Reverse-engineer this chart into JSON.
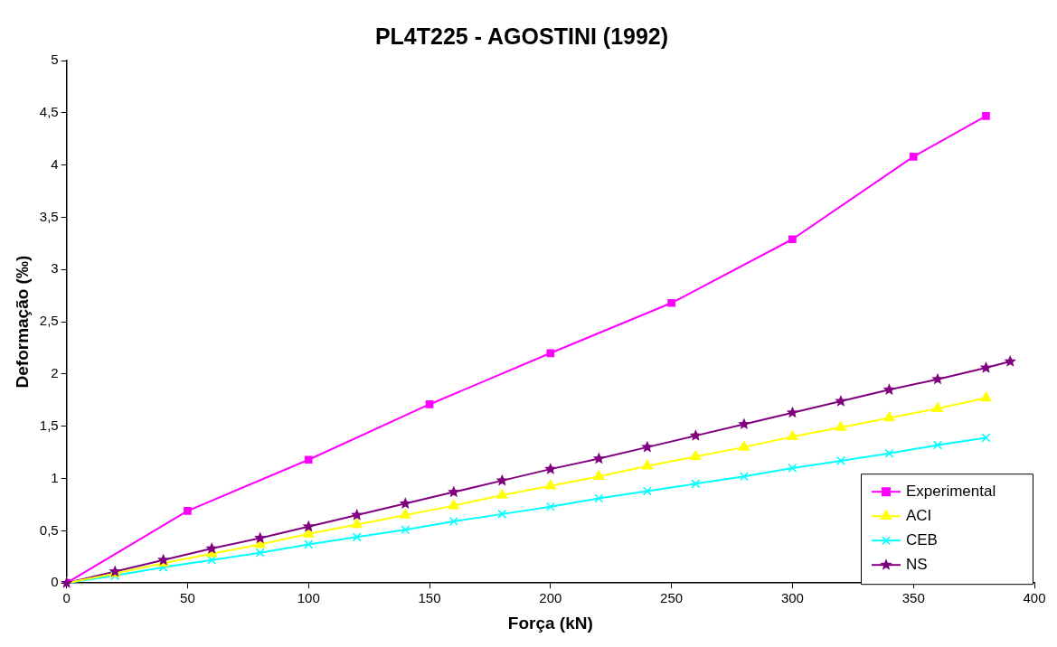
{
  "chart_data": {
    "type": "line",
    "title": "PL4T225 - AGOSTINI (1992)",
    "xlabel": "Força (kN)",
    "ylabel": "Deformação (‰)",
    "xlim": [
      0,
      400
    ],
    "xticks": [
      0,
      50,
      100,
      150,
      200,
      250,
      300,
      350,
      400
    ],
    "ylim": [
      0,
      5
    ],
    "yticks": [
      0,
      {
        "value": 0.5,
        "label": "0,5"
      },
      1,
      {
        "value": 1.5,
        "label": "1,5"
      },
      2,
      {
        "value": 2.5,
        "label": "2,5"
      },
      3,
      {
        "value": 3.5,
        "label": "3,5"
      },
      4,
      {
        "value": 4.5,
        "label": "4,5"
      },
      5
    ],
    "grid": false,
    "legend": "bottom right",
    "line_style": "solid",
    "series": [
      {
        "name": "Experimental",
        "color": "#ff00ff",
        "marker": "square",
        "x": [
          0,
          50,
          100,
          150,
          200,
          250,
          300,
          350,
          380
        ],
        "values": [
          0,
          0.69,
          1.18,
          1.71,
          2.2,
          2.68,
          3.29,
          4.08,
          4.47
        ]
      },
      {
        "name": "ACI",
        "color": "#ffff00",
        "marker": "triangle",
        "x": [
          0,
          20,
          40,
          60,
          80,
          100,
          120,
          140,
          160,
          180,
          200,
          220,
          240,
          260,
          280,
          300,
          320,
          340,
          360,
          380
        ],
        "values": [
          0,
          0.09,
          0.19,
          0.28,
          0.37,
          0.47,
          0.56,
          0.65,
          0.74,
          0.84,
          0.93,
          1.02,
          1.12,
          1.21,
          1.3,
          1.4,
          1.49,
          1.58,
          1.67,
          1.77
        ]
      },
      {
        "name": "CEB",
        "color": "#00ffff",
        "marker": "cross",
        "x": [
          0,
          20,
          40,
          60,
          80,
          100,
          120,
          140,
          160,
          180,
          200,
          220,
          240,
          260,
          280,
          300,
          320,
          340,
          360,
          380
        ],
        "values": [
          0,
          0.07,
          0.15,
          0.22,
          0.29,
          0.37,
          0.44,
          0.51,
          0.59,
          0.66,
          0.73,
          0.81,
          0.88,
          0.95,
          1.02,
          1.1,
          1.17,
          1.24,
          1.32,
          1.39
        ]
      },
      {
        "name": "NS",
        "color": "#800080",
        "marker": "star",
        "x": [
          0,
          20,
          40,
          60,
          80,
          100,
          120,
          140,
          160,
          180,
          200,
          220,
          240,
          260,
          280,
          300,
          320,
          340,
          360,
          380,
          390
        ],
        "values": [
          0,
          0.11,
          0.22,
          0.33,
          0.43,
          0.54,
          0.65,
          0.76,
          0.87,
          0.98,
          1.09,
          1.19,
          1.3,
          1.41,
          1.52,
          1.63,
          1.74,
          1.85,
          1.95,
          2.06,
          2.12
        ]
      }
    ]
  }
}
